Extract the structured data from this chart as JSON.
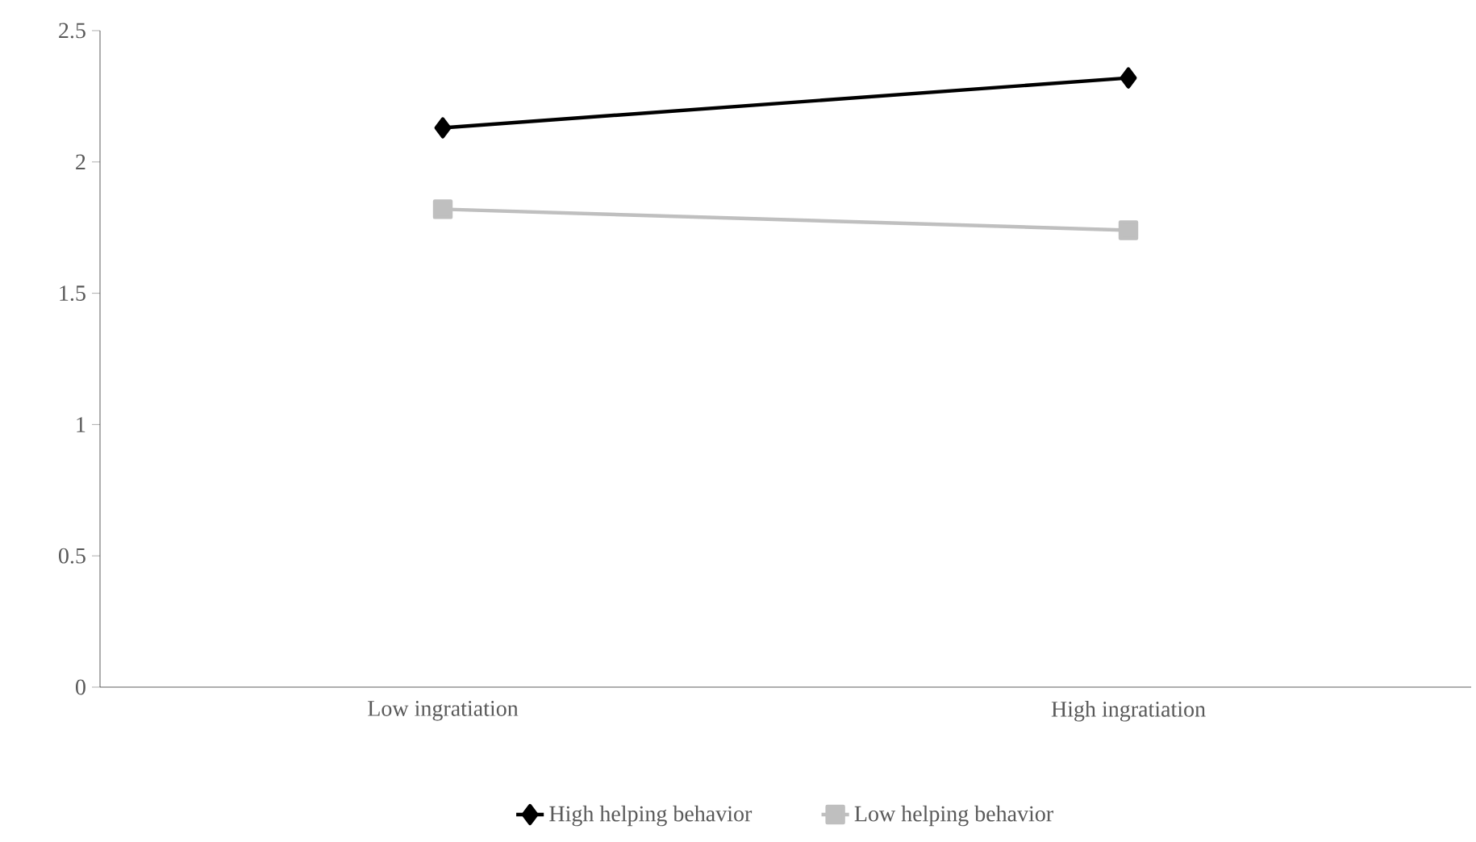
{
  "chart_data": {
    "type": "line",
    "categories": [
      "Low ingratiation",
      "High ingratiation"
    ],
    "series": [
      {
        "name": "High helping behavior",
        "color": "#000000",
        "marker": "diamond",
        "values": [
          2.13,
          2.32
        ]
      },
      {
        "name": "Low helping behavior",
        "color": "#bfbfbf",
        "marker": "square",
        "values": [
          1.82,
          1.74
        ]
      }
    ],
    "ylim": [
      0,
      2.5
    ],
    "yticks": [
      0,
      0.5,
      1,
      1.5,
      2,
      2.5
    ],
    "grid": false,
    "legend": "bottom",
    "line_style": "solid"
  }
}
